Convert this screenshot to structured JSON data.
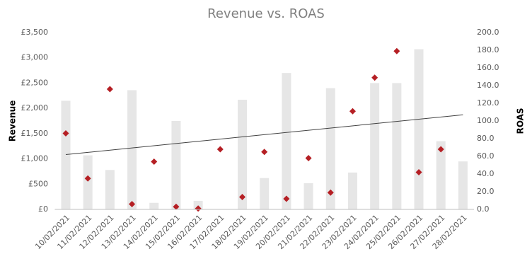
{
  "chart_data": {
    "type": "bar",
    "title": "Revenue vs. ROAS",
    "y_label": "Revenue",
    "y2_label": "ROAS",
    "categories": [
      "10/02/2021",
      "11/02/2021",
      "12/02/2021",
      "13/02/2021",
      "14/02/2021",
      "15/02/2021",
      "16/02/2021",
      "17/02/2021",
      "18/02/2021",
      "19/02/2021",
      "20/02/2021",
      "21/02/2021",
      "22/02/2021",
      "23/02/2021",
      "24/02/2021",
      "25/02/2021",
      "26/02/2021",
      "27/02/2021",
      "28/02/2021"
    ],
    "series": [
      {
        "name": "Revenue",
        "type": "bar",
        "color": "#e6e6e6",
        "values": [
          2150,
          1070,
          780,
          2360,
          130,
          1750,
          170,
          0,
          2170,
          620,
          2700,
          520,
          2400,
          730,
          2500,
          2500,
          3170,
          1350,
          950
        ]
      },
      {
        "name": "ROAS",
        "type": "scatter",
        "axis": "y2",
        "color": "#b51f24",
        "values": [
          86,
          35,
          136,
          6,
          54,
          3,
          1,
          68,
          14,
          65,
          12,
          58,
          19,
          111,
          149,
          179,
          42,
          68,
          null
        ]
      }
    ],
    "trendline": {
      "axis": "y2",
      "color": "#404040",
      "start": 62,
      "end": 107
    },
    "ylim": [
      0,
      3500
    ],
    "yticks": [
      {
        "value": 0,
        "label": "£0"
      },
      {
        "value": 500,
        "label": "£500"
      },
      {
        "value": 1000,
        "label": "£1,000"
      },
      {
        "value": 1500,
        "label": "£1,500"
      },
      {
        "value": 2000,
        "label": "£2,000"
      },
      {
        "value": 2500,
        "label": "£2,500"
      },
      {
        "value": 3000,
        "label": "£3,000"
      },
      {
        "value": 3500,
        "label": "£3,500"
      }
    ],
    "y2lim": [
      0,
      200
    ],
    "y2ticks": [
      {
        "value": 0,
        "label": "0.0"
      },
      {
        "value": 20,
        "label": "20.0"
      },
      {
        "value": 40,
        "label": "40.0"
      },
      {
        "value": 60,
        "label": "60.0"
      },
      {
        "value": 80,
        "label": "80.0"
      },
      {
        "value": 100,
        "label": "100.0"
      },
      {
        "value": 120,
        "label": "120.0"
      },
      {
        "value": 140,
        "label": "140.0"
      },
      {
        "value": 160,
        "label": "160.0"
      },
      {
        "value": 180,
        "label": "180.0"
      },
      {
        "value": 200,
        "label": "200.0"
      }
    ],
    "grid": false
  }
}
